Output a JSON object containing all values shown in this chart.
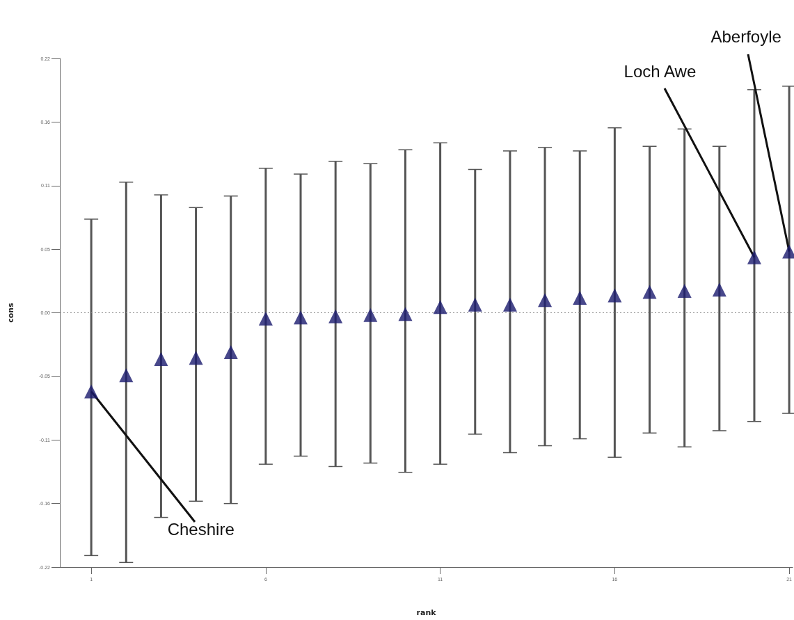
{
  "chart_data": {
    "type": "scatter",
    "xlabel": "rank",
    "ylabel": "cons",
    "x": [
      1,
      2,
      3,
      4,
      5,
      6,
      7,
      8,
      9,
      10,
      11,
      12,
      13,
      14,
      15,
      16,
      17,
      18,
      19,
      20,
      21
    ],
    "series": [
      {
        "color": "#1a1a6e",
        "values": [
          -0.068,
          -0.054,
          -0.04,
          -0.039,
          -0.034,
          -0.005,
          -0.004,
          -0.003,
          -0.002,
          -0.001,
          0.005,
          0.007,
          0.007,
          0.011,
          0.013,
          0.015,
          0.018,
          0.019,
          0.02,
          0.048,
          0.053
        ],
        "errors": [
          [
            -0.21,
            0.081
          ],
          [
            -0.216,
            0.113
          ],
          [
            -0.177,
            0.102
          ],
          [
            -0.163,
            0.091
          ],
          [
            -0.165,
            0.101
          ],
          [
            -0.131,
            0.125
          ],
          [
            -0.124,
            0.12
          ],
          [
            -0.133,
            0.131
          ],
          [
            -0.13,
            0.129
          ],
          [
            -0.138,
            0.141
          ],
          [
            -0.131,
            0.147
          ],
          [
            -0.105,
            0.124
          ],
          [
            -0.121,
            0.14
          ],
          [
            -0.115,
            0.143
          ],
          [
            -0.109,
            0.14
          ],
          [
            -0.125,
            0.16
          ],
          [
            -0.104,
            0.144
          ],
          [
            -0.116,
            0.159
          ],
          [
            -0.102,
            0.144
          ],
          [
            -0.094,
            0.193
          ],
          [
            -0.087,
            0.196
          ]
        ]
      }
    ],
    "marker": "triangle",
    "xlim": [
      0.1,
      21.1
    ],
    "xticks": [
      1,
      6,
      11,
      16,
      21
    ],
    "ylim": [
      -0.22,
      0.22
    ],
    "yticks": [
      {
        "value": -0.22,
        "label": "-0.22"
      },
      {
        "value": -0.165,
        "label": "-0.16"
      },
      {
        "value": -0.11,
        "label": "-0.11"
      },
      {
        "value": -0.055,
        "label": "-0.05"
      },
      {
        "value": 0,
        "label": "0.00"
      },
      {
        "value": 0.055,
        "label": "0.05"
      },
      {
        "value": 0.11,
        "label": "0.11"
      },
      {
        "value": 0.165,
        "label": "0.16"
      },
      {
        "value": 0.22,
        "label": "0.22"
      }
    ],
    "ref_lines": [
      {
        "axis": "y",
        "value": 0,
        "line_style": "dotted",
        "color": "#888888"
      }
    ],
    "grid": false,
    "annotations": [
      {
        "text": "Cheshire",
        "x": 1,
        "y": -0.068
      },
      {
        "text": "Loch Awe",
        "x": 20,
        "y": 0.048
      },
      {
        "text": "Aberfoyle",
        "x": 21,
        "y": 0.053
      }
    ]
  }
}
